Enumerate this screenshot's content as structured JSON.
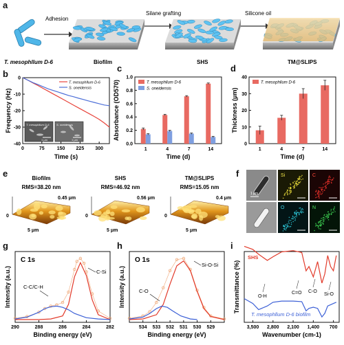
{
  "panels": {
    "a": {
      "letter": "a",
      "steps": [
        "Adhesion",
        "Silane grafting",
        "Silicone oil"
      ],
      "stages": [
        "T. mesophllum D-6",
        "Biofilm",
        "SHS",
        "TM@SLIPS"
      ]
    },
    "b": {
      "letter": "b",
      "inset_labels": [
        "T. mesophllum D-6",
        "S. oneidensis"
      ],
      "scale_bars": [
        "1 μm",
        "1 μm"
      ]
    },
    "c": {
      "letter": "c"
    },
    "d": {
      "letter": "d"
    },
    "e": {
      "letter": "e",
      "samples": [
        {
          "name": "Biofilm",
          "rms": "RMS=38.20 nm",
          "height": "0.45 μm",
          "zero": "0",
          "width": "5 μm"
        },
        {
          "name": "SHS",
          "rms": "RMS=46.92 nm",
          "height": "0.56 μm",
          "zero": "0",
          "width": "5 μm"
        },
        {
          "name": "TM@SLIPS",
          "rms": "RMS=15.05 nm",
          "height": "0.4 μm",
          "zero": "0",
          "width": "5 μm"
        }
      ]
    },
    "f": {
      "letter": "f",
      "elements": [
        "Si",
        "C",
        "O",
        "N"
      ],
      "scale_bar": "1 μm"
    },
    "g": {
      "letter": "g",
      "title": "C 1s",
      "peaks": [
        "C-C/C-H",
        "C-Si"
      ]
    },
    "h": {
      "letter": "h",
      "title": "O 1s",
      "peaks": [
        "C-O",
        "Si-O-Si"
      ]
    },
    "i": {
      "letter": "i",
      "series_labels": [
        "SHS",
        "T. mesophllum D-6 biofilm"
      ],
      "peaks": [
        "O-H",
        "C=O",
        "C-O",
        "Si-O"
      ]
    }
  },
  "chart_data": [
    {
      "panel": "b",
      "type": "line",
      "xlabel": "Time (s)",
      "ylabel": "Frequency (Hz)",
      "xlim": [
        0,
        340
      ],
      "ylim": [
        -40,
        0
      ],
      "xticks": [
        "0",
        "75",
        "150",
        "225",
        "300"
      ],
      "yticks": [
        "0",
        "-10",
        "-20",
        "-30",
        "-40"
      ],
      "legend": "top-right",
      "series": [
        {
          "name": "T. mesophllum D-6",
          "color": "#e8433a",
          "x": [
            0,
            20,
            40,
            60,
            80,
            100,
            120,
            140,
            160,
            180,
            200,
            220,
            240,
            260,
            280,
            300,
            320,
            340
          ],
          "y": [
            0,
            -1.5,
            -3.2,
            -4.8,
            -6.5,
            -8.2,
            -9.9,
            -11.6,
            -13.3,
            -15.0,
            -16.7,
            -18.4,
            -20.1,
            -21.8,
            -23.5,
            -25.3,
            -27.5,
            -30.0
          ]
        },
        {
          "name": "S. oneidensis",
          "color": "#4d6fd8",
          "x": [
            0,
            20,
            40,
            60,
            80,
            100,
            120,
            140,
            160,
            180,
            200,
            220,
            240,
            260,
            280,
            300,
            320,
            340
          ],
          "y": [
            0,
            -1.5,
            -3.0,
            -4.2,
            -5.5,
            -6.8,
            -7.8,
            -8.8,
            -9.8,
            -10.8,
            -11.6,
            -12.5,
            -13.3,
            -14.2,
            -15.0,
            -15.8,
            -16.6,
            -17.0
          ]
        }
      ]
    },
    {
      "panel": "c",
      "type": "bar",
      "xlabel": "Time (d)",
      "ylabel": "Absorbance (OD570)",
      "categories": [
        "1",
        "4",
        "7",
        "14"
      ],
      "ylim": [
        0,
        1.0
      ],
      "yticks": [
        "0.0",
        "0.2",
        "0.4",
        "0.6",
        "0.8",
        "1.0"
      ],
      "legend": "top-left",
      "series": [
        {
          "name": "T. mesophllum D-6",
          "color": "#e86a62",
          "values": [
            0.22,
            0.43,
            0.71,
            0.9
          ],
          "errors": [
            0.015,
            0.01,
            0.01,
            0.01
          ]
        },
        {
          "name": "S. oneidensis",
          "color": "#7f9fe0",
          "values": [
            0.14,
            0.19,
            0.15,
            0.1
          ],
          "errors": [
            0.01,
            0.01,
            0.01,
            0.01
          ]
        }
      ]
    },
    {
      "panel": "d",
      "type": "bar",
      "xlabel": "Time (d)",
      "ylabel": "Thickness (μm)",
      "categories": [
        "1",
        "4",
        "7",
        "14"
      ],
      "ylim": [
        0,
        40
      ],
      "yticks": [
        "0",
        "10",
        "20",
        "30",
        "40"
      ],
      "legend": "top-left",
      "series": [
        {
          "name": "T. mesophllum D-6",
          "color": "#e86a62",
          "values": [
            8,
            15.5,
            30,
            35
          ],
          "errors": [
            2.5,
            1.5,
            3,
            3
          ]
        }
      ]
    },
    {
      "panel": "g",
      "type": "line",
      "xlabel": "Binding energy (eV)",
      "ylabel": "Intensity (a.u.)",
      "xlim": [
        290,
        282
      ],
      "xticks": [
        "290",
        "288",
        "286",
        "284",
        "282"
      ],
      "series": [
        {
          "name": "measured",
          "color": "#f0a878",
          "x": [
            290,
            289,
            288,
            287.5,
            287,
            286.5,
            286,
            285.5,
            285,
            284.8,
            284.5,
            284.2,
            284,
            283.5,
            283,
            282
          ],
          "y": [
            0.02,
            0.05,
            0.12,
            0.18,
            0.22,
            0.24,
            0.28,
            0.45,
            0.82,
            0.95,
            1.0,
            0.92,
            0.78,
            0.42,
            0.14,
            0.02
          ]
        },
        {
          "name": "C-Si",
          "color": "#e23a2a",
          "x": [
            290,
            288,
            287,
            286,
            285.5,
            285,
            284.5,
            284,
            283.5,
            283,
            282
          ],
          "y": [
            0,
            0,
            0.01,
            0.06,
            0.25,
            0.7,
            0.93,
            0.72,
            0.32,
            0.08,
            0
          ]
        },
        {
          "name": "C-C/C-H",
          "color": "#3b5fd6",
          "x": [
            290,
            289,
            288,
            287.5,
            287,
            286.5,
            286,
            285.5,
            285,
            284,
            283,
            282
          ],
          "y": [
            0.01,
            0.04,
            0.12,
            0.18,
            0.21,
            0.22,
            0.2,
            0.16,
            0.1,
            0.03,
            0.01,
            0
          ]
        }
      ]
    },
    {
      "panel": "h",
      "type": "line",
      "xlabel": "Binding energy (eV)",
      "ylabel": "Intensity (a.u.)",
      "xlim": [
        535,
        528
      ],
      "xticks": [
        "534",
        "533",
        "532",
        "531",
        "530",
        "529"
      ],
      "series": [
        {
          "name": "measured",
          "color": "#f0a878",
          "x": [
            535,
            534,
            533.5,
            533,
            532.5,
            532,
            531.5,
            531,
            530.5,
            530,
            529.5,
            529,
            528
          ],
          "y": [
            0.02,
            0.06,
            0.13,
            0.28,
            0.52,
            0.8,
            0.98,
            1.0,
            0.82,
            0.48,
            0.2,
            0.06,
            0.01
          ]
        },
        {
          "name": "Si-O-Si",
          "color": "#e23a2a",
          "x": [
            535,
            534,
            533,
            532.5,
            532,
            531.5,
            531,
            530.5,
            530,
            529.5,
            529,
            528
          ],
          "y": [
            0,
            0.01,
            0.08,
            0.25,
            0.58,
            0.88,
            0.96,
            0.8,
            0.46,
            0.18,
            0.05,
            0
          ]
        },
        {
          "name": "C-O",
          "color": "#3b5fd6",
          "x": [
            535,
            534,
            533.5,
            533,
            532.6,
            532.2,
            531.8,
            531.2,
            530.5,
            530
          ],
          "y": [
            0.01,
            0.04,
            0.1,
            0.18,
            0.22,
            0.2,
            0.14,
            0.06,
            0.01,
            0
          ]
        }
      ]
    },
    {
      "panel": "i",
      "type": "line",
      "xlabel": "Wavenumber (cm-1)",
      "ylabel": "Transmittance (%)",
      "xlim": [
        3800,
        500
      ],
      "xticks": [
        "3,500",
        "2,800",
        "2,100",
        "1,400",
        "700"
      ],
      "series": [
        {
          "name": "SHS",
          "color": "#e23a2a",
          "x": [
            3800,
            3500,
            3300,
            3000,
            2800,
            2500,
            2100,
            1800,
            1650,
            1550,
            1400,
            1250,
            1100,
            1000,
            900,
            800,
            700,
            600
          ],
          "y": [
            0.95,
            0.9,
            0.82,
            0.72,
            0.78,
            0.86,
            0.88,
            0.85,
            0.55,
            0.62,
            0.45,
            0.7,
            0.35,
            0.5,
            0.8,
            0.62,
            0.55,
            0.8
          ]
        },
        {
          "name": "T. mesophllum D-6 biofilm",
          "color": "#3b5fd6",
          "x": [
            3800,
            3500,
            3300,
            3000,
            2800,
            2500,
            2100,
            1800,
            1650,
            1550,
            1400,
            1250,
            1100,
            1000,
            900,
            800,
            700,
            600
          ],
          "y": [
            0.5,
            0.42,
            0.32,
            0.38,
            0.44,
            0.46,
            0.46,
            0.45,
            0.3,
            0.34,
            0.36,
            0.34,
            0.2,
            0.26,
            0.38,
            0.4,
            0.42,
            0.44
          ]
        }
      ]
    }
  ]
}
